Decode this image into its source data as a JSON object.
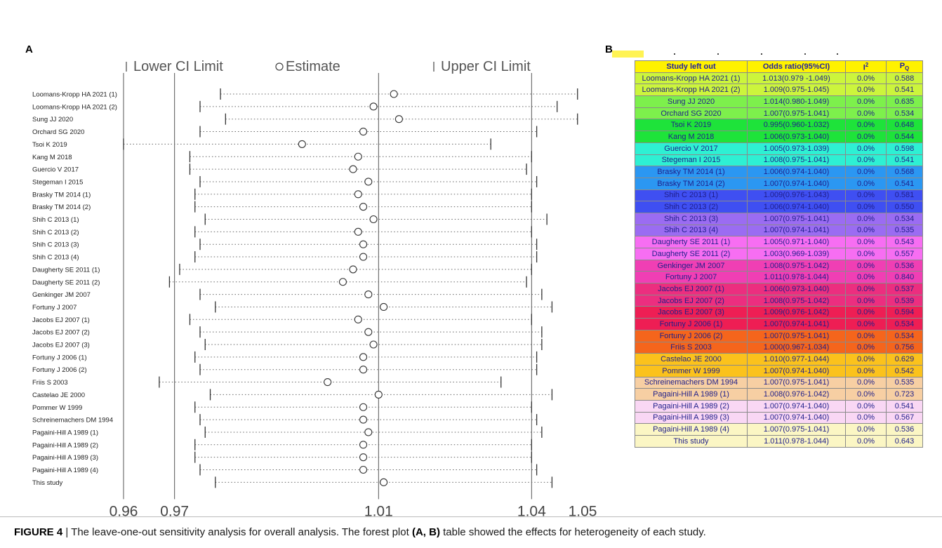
{
  "panels": {
    "a_label": "A",
    "b_label": "B"
  },
  "chart_data": {
    "type": "scatter",
    "subtype": "forest-plot",
    "legend": {
      "lower": "Lower CI Limit",
      "estimate": "Estimate",
      "upper": "Upper CI Limit",
      "placement": "top"
    },
    "x_ticks": [
      "0.96",
      "0.97",
      "1.01",
      "1.04",
      "1.05"
    ],
    "x_tick_values": [
      0.96,
      0.97,
      1.01,
      1.04,
      1.05
    ],
    "xlim": [
      0.96,
      1.05
    ],
    "reference_lines": [
      0.97,
      1.01,
      1.04
    ],
    "series": [
      {
        "name": "Estimate"
      },
      {
        "name": "Lower CI Limit"
      },
      {
        "name": "Upper CI Limit"
      }
    ],
    "studies": [
      {
        "label": "Loomans-Kropp HA 2021 (1)",
        "estimate": 1.013,
        "lower": 0.979,
        "upper": 1.049
      },
      {
        "label": "Loomans-Kropp HA 2021 (2)",
        "estimate": 1.009,
        "lower": 0.975,
        "upper": 1.045
      },
      {
        "label": "Sung JJ 2020",
        "estimate": 1.014,
        "lower": 0.98,
        "upper": 1.049
      },
      {
        "label": "Orchard SG 2020",
        "estimate": 1.007,
        "lower": 0.975,
        "upper": 1.041
      },
      {
        "label": "Tsoi K 2019",
        "estimate": 0.995,
        "lower": 0.96,
        "upper": 1.032
      },
      {
        "label": "Kang M 2018",
        "estimate": 1.006,
        "lower": 0.973,
        "upper": 1.04
      },
      {
        "label": "Guercio V 2017",
        "estimate": 1.005,
        "lower": 0.973,
        "upper": 1.039
      },
      {
        "label": "Stegeman I 2015",
        "estimate": 1.008,
        "lower": 0.975,
        "upper": 1.041
      },
      {
        "label": "Brasky TM 2014 (1)",
        "estimate": 1.006,
        "lower": 0.974,
        "upper": 1.04
      },
      {
        "label": "Brasky TM 2014 (2)",
        "estimate": 1.007,
        "lower": 0.974,
        "upper": 1.04
      },
      {
        "label": "Shih C 2013 (1)",
        "estimate": 1.009,
        "lower": 0.976,
        "upper": 1.043
      },
      {
        "label": "Shih C 2013 (2)",
        "estimate": 1.006,
        "lower": 0.974,
        "upper": 1.04
      },
      {
        "label": "Shih C 2013 (3)",
        "estimate": 1.007,
        "lower": 0.975,
        "upper": 1.041
      },
      {
        "label": "Shih C 2013 (4)",
        "estimate": 1.007,
        "lower": 0.974,
        "upper": 1.041
      },
      {
        "label": "Daugherty SE 2011 (1)",
        "estimate": 1.005,
        "lower": 0.971,
        "upper": 1.04
      },
      {
        "label": "Daugherty SE 2011 (2)",
        "estimate": 1.003,
        "lower": 0.969,
        "upper": 1.039
      },
      {
        "label": "Genkinger JM 2007",
        "estimate": 1.008,
        "lower": 0.975,
        "upper": 1.042
      },
      {
        "label": "Fortuny J 2007",
        "estimate": 1.011,
        "lower": 0.978,
        "upper": 1.044
      },
      {
        "label": "Jacobs EJ 2007 (1)",
        "estimate": 1.006,
        "lower": 0.973,
        "upper": 1.04
      },
      {
        "label": "Jacobs EJ 2007 (2)",
        "estimate": 1.008,
        "lower": 0.975,
        "upper": 1.042
      },
      {
        "label": "Jacobs EJ 2007 (3)",
        "estimate": 1.009,
        "lower": 0.976,
        "upper": 1.042
      },
      {
        "label": "Fortuny J 2006 (1)",
        "estimate": 1.007,
        "lower": 0.974,
        "upper": 1.041
      },
      {
        "label": "Fortuny J 2006 (2)",
        "estimate": 1.007,
        "lower": 0.975,
        "upper": 1.041
      },
      {
        "label": "Friis S 2003",
        "estimate": 1.0,
        "lower": 0.967,
        "upper": 1.034
      },
      {
        "label": "Castelao JE 2000",
        "estimate": 1.01,
        "lower": 0.977,
        "upper": 1.044
      },
      {
        "label": "Pommer W 1999",
        "estimate": 1.007,
        "lower": 0.974,
        "upper": 1.04
      },
      {
        "label": "Schreinemachers DM 1994",
        "estimate": 1.007,
        "lower": 0.975,
        "upper": 1.041
      },
      {
        "label": "Pagaini-Hill A 1989 (1)",
        "estimate": 1.008,
        "lower": 0.976,
        "upper": 1.042
      },
      {
        "label": "Pagaini-Hill A 1989 (2)",
        "estimate": 1.007,
        "lower": 0.974,
        "upper": 1.04
      },
      {
        "label": "Pagaini-Hill A 1989 (3)",
        "estimate": 1.007,
        "lower": 0.974,
        "upper": 1.04
      },
      {
        "label": "Pagaini-Hill A 1989 (4)",
        "estimate": 1.007,
        "lower": 0.975,
        "upper": 1.041
      },
      {
        "label": "This study",
        "estimate": 1.011,
        "lower": 0.978,
        "upper": 1.044
      }
    ]
  },
  "table": {
    "headers": [
      "Study left out",
      "Odds ratio(95%CI)",
      "I",
      "P"
    ],
    "header_superscript_i": "2",
    "header_subscript_p": "Q",
    "rows": [
      {
        "study": "Loomans-Kropp HA 2021 (1)",
        "or": "1.013(0.979 -1.049)",
        "i2": "0.0%",
        "pq": "0.588",
        "color": "#ccf53c"
      },
      {
        "study": "Loomans-Kropp HA 2021 (2)",
        "or": "1.009(0.975-1.045)",
        "i2": "0.0%",
        "pq": "0.541",
        "color": "#ccf53c"
      },
      {
        "study": "Sung JJ 2020",
        "or": "1.014(0.980-1.049)",
        "i2": "0.0%",
        "pq": "0.635",
        "color": "#7df04c"
      },
      {
        "study": "Orchard SG 2020",
        "or": "1.007(0.975-1.041)",
        "i2": "0.0%",
        "pq": "0.534",
        "color": "#7df04c"
      },
      {
        "study": "Tsoi K  2019",
        "or": "0.995(0.960-1.032)",
        "i2": "0.0%",
        "pq": "0.648",
        "color": "#1ee33a"
      },
      {
        "study": "Kang M 2018",
        "or": "1.006(0.973-1.040)",
        "i2": "0.0%",
        "pq": "0.544",
        "color": "#1ee33a"
      },
      {
        "study": "Guercio V   2017",
        "or": "1.005(0.973-1.039)",
        "i2": "0.0%",
        "pq": "0.598",
        "color": "#2ef0d3"
      },
      {
        "study": "Stegeman I 2015",
        "or": "1.008(0.975-1.041)",
        "i2": "0.0%",
        "pq": "0.541",
        "color": "#2ef0d3"
      },
      {
        "study": "Brasky TM 2014 (1)",
        "or": "1.006(0.974-1.040)",
        "i2": "0.0%",
        "pq": "0.568",
        "color": "#2b97f2"
      },
      {
        "study": "Brasky TM 2014 (2)",
        "or": "1.007(0.974-1.040)",
        "i2": "0.0%",
        "pq": "0.541",
        "color": "#2b97f2"
      },
      {
        "study": "Shih C   2013 (1)",
        "or": "1.009(0.976-1.043)",
        "i2": "0.0%",
        "pq": "0.581",
        "color": "#3f4ff2"
      },
      {
        "study": "Shih C   2013 (2)",
        "or": "1.006(0.974-1.040)",
        "i2": "0.0%",
        "pq": "0.550",
        "color": "#3f4ff2"
      },
      {
        "study": "Shih C   2013 (3)",
        "or": "1.007(0.975-1.041)",
        "i2": "0.0%",
        "pq": "0.534",
        "color": "#9b6cf2"
      },
      {
        "study": "Shih C   2013 (4)",
        "or": "1.007(0.974-1.041)",
        "i2": "0.0%",
        "pq": "0.535",
        "color": "#9b6cf2"
      },
      {
        "study": "Daugherty SE 2011 (1)",
        "or": "1.005(0.971-1.040)",
        "i2": "0.0%",
        "pq": "0.543",
        "color": "#f76ef2"
      },
      {
        "study": "Daugherty SE 2011 (2)",
        "or": "1.003(0.969-1.039)",
        "i2": "0.0%",
        "pq": "0.557",
        "color": "#f76ef2"
      },
      {
        "study": "Genkinger JM 2007",
        "or": "1.008(0.975-1.042)",
        "i2": "0.0%",
        "pq": "0.536",
        "color": "#f03fb4"
      },
      {
        "study": "Fortuny J 2007",
        "or": "1.011(0.978-1.044)",
        "i2": "0.0%",
        "pq": "0.840",
        "color": "#f03fb4"
      },
      {
        "study": "Jacobs EJ 2007 (1)",
        "or": "1.006(0.973-1.040)",
        "i2": "0.0%",
        "pq": "0.537",
        "color": "#ec2e7f"
      },
      {
        "study": "Jacobs EJ 2007 (2)",
        "or": "1.008(0.975-1.042)",
        "i2": "0.0%",
        "pq": "0.539",
        "color": "#ec2e7f"
      },
      {
        "study": "Jacobs EJ 2007 (3)",
        "or": "1.009(0.976-1.042)",
        "i2": "0.0%",
        "pq": "0.594",
        "color": "#ee1e54"
      },
      {
        "study": "Fortuny J 2006 (1)",
        "or": "1.007(0.974-1.041)",
        "i2": "0.0%",
        "pq": "0.534",
        "color": "#ee1e54"
      },
      {
        "study": "Fortuny J 2006 (2)",
        "or": "1.007(0.975-1.041)",
        "i2": "0.0%",
        "pq": "0.534",
        "color": "#f5651c"
      },
      {
        "study": "Friis S 2003",
        "or": "1.000(0.967-1.034)",
        "i2": "0.0%",
        "pq": "0.756",
        "color": "#f5651c"
      },
      {
        "study": "Castelao JE 2000",
        "or": "1.010(0.977-1.044)",
        "i2": "0.0%",
        "pq": "0.629",
        "color": "#fbc21c"
      },
      {
        "study": "Pommer W 1999",
        "or": "1.007(0.974-1.040)",
        "i2": "0.0%",
        "pq": "0.542",
        "color": "#fbc21c"
      },
      {
        "study": "Schreinemachers DM 1994",
        "or": "1.007(0.975-1.041)",
        "i2": "0.0%",
        "pq": "0.535",
        "color": "#f7cfa3"
      },
      {
        "study": "Pagaini-Hill A 1989 (1)",
        "or": "1.008(0.976-1.042)",
        "i2": "0.0%",
        "pq": "0.723",
        "color": "#f7cfa3"
      },
      {
        "study": "Pagaini-Hill A 1989 (2)",
        "or": "1.007(0.974-1.040)",
        "i2": "0.0%",
        "pq": "0.541",
        "color": "#f9d7f4"
      },
      {
        "study": "Pagaini-Hill A 1989 (3)",
        "or": "1.007(0.974-1.040)",
        "i2": "0.0%",
        "pq": "0.567",
        "color": "#f9d7f4"
      },
      {
        "study": "Pagaini-Hill A 1989 (4)",
        "or": "1.007(0.975-1.041)",
        "i2": "0.0%",
        "pq": "0.536",
        "color": "#fbf6c4"
      },
      {
        "study": "This study",
        "or": "1.011(0.978-1.044)",
        "i2": "0.0%",
        "pq": "0.643",
        "color": "#fbf6c4"
      }
    ]
  },
  "caption": {
    "figure": "FIGURE 4",
    "separator": " | ",
    "text1": "The leave-one-out sensitivity analysis for overall analysis. The forest plot ",
    "ref": "(A, B)",
    "text2": " table showed the effects for heterogeneity of each study."
  },
  "colors": {
    "header_bg": "#fff200",
    "text_blue": "#1f1f8a",
    "axis": "#444444"
  }
}
